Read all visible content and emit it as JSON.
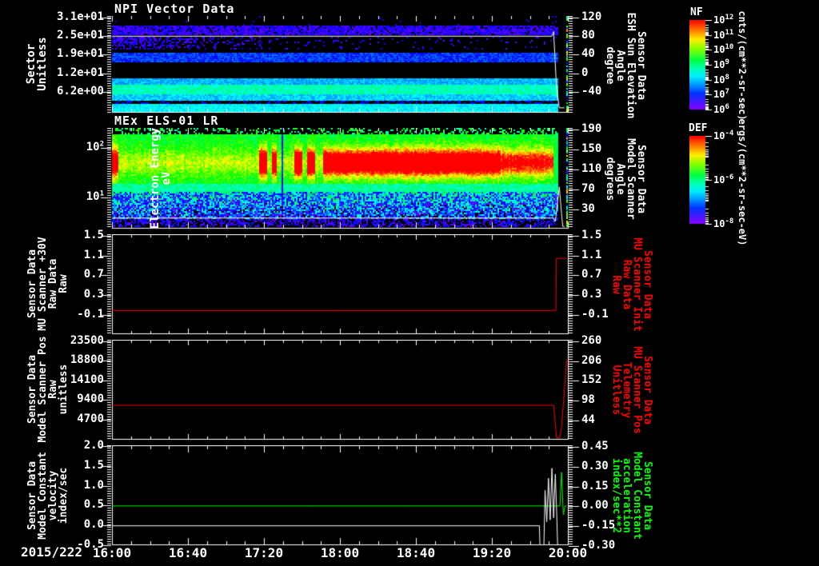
{
  "date_label": "2015/222",
  "x_axis": {
    "tick_labels": [
      "16:00",
      "16:40",
      "17:20",
      "18:00",
      "18:40",
      "19:20",
      "20:00"
    ],
    "start_hour": 16,
    "end_hour": 20
  },
  "colors": {
    "background": "#000000",
    "axis": "#ffffff",
    "trace_red": "#ff0000",
    "trace_green": "#00ff00"
  },
  "colorbars": [
    {
      "id": "nf",
      "title": "NF",
      "tick_labels": [
        "10^12",
        "10^11",
        "10^10",
        "10^9",
        "10^8",
        "10^7",
        "10^6"
      ],
      "units": "cnts/(cm**2-sr-sec)"
    },
    {
      "id": "def",
      "title": "DEF",
      "tick_labels": [
        "10^-4",
        "10^-6",
        "10^-8"
      ],
      "units": "ergs/(cm**2-sr-sec-eV)"
    }
  ],
  "panels": [
    {
      "id": "npi",
      "title": "NPI Vector Data",
      "left_label_lines": [
        "Sector",
        "Unitless"
      ],
      "left_tick_labels": [
        "3.1e+01",
        "2.5e+01",
        "1.9e+01",
        "1.2e+01",
        "6.2e+00"
      ],
      "right_tick_labels": [
        "120",
        "80",
        "40",
        "0",
        "-40"
      ],
      "right_label_lines": [
        "Sensor Data",
        "ESH Sun Elevation",
        "Angle",
        "degree"
      ],
      "right_label_color": "#ffffff"
    },
    {
      "id": "els",
      "title": "MEx ELS-01 LR",
      "left_label_lines": [
        "Electron Energy",
        "eV"
      ],
      "left_tick_labels": [
        "10^2",
        "10^1"
      ],
      "right_tick_labels": [
        "190",
        "150",
        "110",
        "70",
        "30"
      ],
      "right_label_lines": [
        "Sensor Data",
        "Model Scanner",
        "Angle",
        "degrees"
      ],
      "right_label_color": "#ffffff"
    },
    {
      "id": "p3",
      "title": "",
      "left_label_lines": [
        "Sensor Data",
        "MU Scanner +30V",
        "Raw Data",
        "Raw"
      ],
      "left_tick_labels": [
        "1.5",
        "1.1",
        "0.7",
        "0.3",
        "-0.1"
      ],
      "right_tick_labels": [
        "1.5",
        "1.1",
        "0.7",
        "0.3",
        "-0.1"
      ],
      "right_label_lines": [
        "Sensor Data",
        "MU Scanner Init",
        "Raw Data",
        "Raw"
      ],
      "right_label_color": "#ff0000"
    },
    {
      "id": "p4",
      "title": "",
      "left_label_lines": [
        "Sensor Data",
        "Model Scanner Pos",
        "Raw",
        "unitless"
      ],
      "left_tick_labels": [
        "23500",
        "18800",
        "14100",
        "9400",
        "4700"
      ],
      "right_tick_labels": [
        "260",
        "206",
        "152",
        "98",
        "44"
      ],
      "right_label_lines": [
        "Sensor Data",
        "MU Scanner Pos",
        "Telemetry",
        "Unitless"
      ],
      "right_label_color": "#ff0000"
    },
    {
      "id": "p5",
      "title": "",
      "left_label_lines": [
        "Sensor Data",
        "Model Constant",
        "velocity",
        "index/sec"
      ],
      "left_tick_labels": [
        "2.0",
        "1.5",
        "1.0",
        "0.5",
        "0.0",
        "-0.5"
      ],
      "right_tick_labels": [
        "0.45",
        "0.30",
        "0.15",
        "0.00",
        "-0.15",
        "-0.30"
      ],
      "right_label_lines": [
        "Sensor Data",
        "Model Constant",
        "acceleration",
        "index/sec**2"
      ],
      "right_label_color": "#00ff00"
    }
  ],
  "chart_data": [
    {
      "type": "heatmap",
      "id": "npi",
      "title": "NPI Vector Data",
      "ylabel": "Sector Unitless",
      "y_ticks": [
        31,
        25,
        19,
        12,
        6.2
      ],
      "y2label": "Sensor Data ESH Sun Elevation Angle degree",
      "y2_ticks": [
        120,
        80,
        40,
        0,
        -40
      ],
      "y2_range": [
        123,
        -83
      ],
      "x_range_hours": [
        16,
        20
      ],
      "colorbar": "NF",
      "colorbar_units": "cnts/(cm**2-sr-sec)",
      "colorbar_range": [
        "1e6",
        "1e12"
      ],
      "bands": [
        {
          "y0": 0.0,
          "y1": 0.09,
          "v": 0.1,
          "density": 0.015
        },
        {
          "y0": 0.09,
          "y1": 0.19,
          "v": 0.07,
          "noise": 0.05,
          "density": 0.88
        },
        {
          "y0": 0.21,
          "y1": 0.35,
          "v": 0.07,
          "noise": 0.05,
          "density": 0.85,
          "fade": 0.62
        },
        {
          "y0": 0.37,
          "y1": 0.47,
          "v": 0.16,
          "noise": 0.06
        },
        {
          "y0": 0.64,
          "y1": 0.71,
          "v": 0.27,
          "noise": 0.05
        },
        {
          "y0": 0.71,
          "y1": 0.81,
          "v": 0.4,
          "noise": 0.06
        },
        {
          "y0": 0.81,
          "y1": 0.875,
          "v": 0.29,
          "noise": 0.05
        },
        {
          "y0": 0.875,
          "y1": 0.905,
          "v": 0.12,
          "density": 0.3
        },
        {
          "y0": 0.905,
          "y1": 0.985,
          "v": 0.33,
          "noise": 0.05
        }
      ],
      "overlay_line": {
        "color": "#ffffff",
        "points": [
          [
            16,
            80
          ],
          [
            19.86,
            80
          ],
          [
            19.875,
            90
          ],
          [
            19.9,
            -30
          ],
          [
            19.925,
            -75
          ],
          [
            19.97,
            -75
          ]
        ]
      },
      "data_gap_hours": [
        19.915,
        19.972
      ]
    },
    {
      "type": "heatmap",
      "id": "els",
      "title": "MEx ELS-01 LR",
      "ylabel": "Electron Energy eV",
      "y_ticks": [
        100,
        10
      ],
      "y_scale": "log",
      "y2label": "Sensor Data Model Scanner Angle degrees",
      "y2_ticks": [
        190,
        150,
        110,
        70,
        30
      ],
      "y2_range": [
        193,
        -7
      ],
      "x_range_hours": [
        16,
        20
      ],
      "colorbar": "DEF",
      "colorbar_units": "ergs/(cm**2-sr-sec-eV)",
      "colorbar_range": [
        "1e-8",
        "1e-4"
      ],
      "bands": [
        {
          "y0": 0.0,
          "y1": 0.05,
          "v": 0.5,
          "noise": 0.15,
          "density": 0.3
        },
        {
          "y0": 0.05,
          "y1": 0.55,
          "v": 0.53,
          "noise": 0.08,
          "hot": true
        },
        {
          "y0": 0.55,
          "y1": 0.64,
          "v": 0.42,
          "noise": 0.07
        },
        {
          "y0": 0.64,
          "y1": 0.9,
          "v": 0.32,
          "noise": 0.24,
          "slope": -0.73,
          "dropout": 0.12
        },
        {
          "y0": 0.9,
          "y1": 1.0,
          "v": 0.08,
          "noise": 0.08,
          "density": 0.55
        }
      ],
      "hot_segments": [
        [
          16.0,
          16.05,
          0.25
        ],
        [
          16.0,
          17.84,
          0.1
        ],
        [
          17.28,
          17.36,
          0.38
        ],
        [
          17.4,
          17.44,
          0.36
        ],
        [
          17.6,
          17.67,
          0.38
        ],
        [
          17.71,
          17.77,
          0.36
        ],
        [
          17.85,
          19.4,
          0.42
        ],
        [
          19.4,
          19.86,
          0.28
        ]
      ],
      "hot_center": 0.34,
      "hot_width": 0.13,
      "dark_seam_hour": 17.49,
      "overlay_line": {
        "color": "#ffffff",
        "points": [
          [
            16,
            12
          ],
          [
            19.87,
            12
          ],
          [
            19.89,
            5
          ],
          [
            19.925,
            75
          ],
          [
            19.945,
            20
          ],
          [
            19.955,
            -5
          ],
          [
            19.97,
            -5
          ]
        ]
      },
      "data_gap_hours": [
        19.915,
        19.972
      ]
    },
    {
      "type": "line",
      "id": "p3",
      "ylabel": "Sensor Data MU Scanner +30V Raw Data Raw",
      "y_ticks": [
        1.5,
        1.1,
        0.7,
        0.3,
        -0.1
      ],
      "y_range": [
        1.53,
        -0.47
      ],
      "y2label": "Sensor Data MU Scanner Init Raw Data Raw",
      "y2_ticks": [
        1.5,
        1.1,
        0.7,
        0.3,
        -0.1
      ],
      "y2_range": [
        1.53,
        -0.47
      ],
      "series": [
        {
          "name": "MU Scanner Init Raw Data",
          "color": "#ff0000",
          "points": [
            [
              16,
              0.0
            ],
            [
              19.895,
              0.0
            ],
            [
              19.9,
              1.05
            ],
            [
              19.99,
              1.05
            ]
          ]
        }
      ]
    },
    {
      "type": "line",
      "id": "p4",
      "ylabel": "Sensor Data Model Scanner Pos Raw unitless",
      "y_ticks": [
        23500,
        18800,
        14100,
        9400,
        4700
      ],
      "y_range": [
        23900,
        0
      ],
      "y2label": "Sensor Data MU Scanner Pos Telemetry Unitless",
      "y2_ticks": [
        260,
        206,
        152,
        98,
        44
      ],
      "y2_range": [
        264,
        -6
      ],
      "series": [
        {
          "name": "Model Scanner Pos Raw",
          "color": "#ff0000",
          "points": [
            [
              16,
              8200
            ],
            [
              19.875,
              8200
            ],
            [
              19.9,
              400
            ],
            [
              19.93,
              400
            ],
            [
              19.945,
              3000
            ],
            [
              19.99,
              19200
            ]
          ]
        }
      ]
    },
    {
      "type": "line",
      "id": "p5",
      "ylabel": "Sensor Data Model Constant velocity index/sec",
      "y_ticks": [
        2.0,
        1.5,
        1.0,
        0.5,
        0.0,
        -0.5
      ],
      "y_range": [
        2.02,
        -0.48
      ],
      "y2label": "Sensor Data Model Constant acceleration index/sec**2",
      "y2_ticks": [
        0.45,
        0.3,
        0.15,
        0.0,
        -0.15,
        -0.3
      ],
      "y2_range": [
        0.462,
        -0.288
      ],
      "series": [
        {
          "name": "Model Constant velocity",
          "color": "#00ff00",
          "points": [
            [
              16,
              0.5
            ],
            [
              19.93,
              0.5
            ],
            [
              19.945,
              1.35
            ],
            [
              19.96,
              0.28
            ],
            [
              19.975,
              0.5
            ],
            [
              19.99,
              0.5
            ]
          ]
        },
        {
          "name": "baseline",
          "color": "#ffffff",
          "points": [
            [
              16,
              0.0
            ],
            [
              19.75,
              0.0
            ],
            [
              19.755,
              -0.48
            ],
            [
              19.79,
              -0.48
            ],
            [
              19.8,
              0.9
            ],
            [
              19.815,
              0.1
            ],
            [
              19.83,
              1.2
            ],
            [
              19.845,
              0.15
            ],
            [
              19.86,
              1.45
            ],
            [
              19.875,
              0.2
            ],
            [
              19.89,
              1.3
            ],
            [
              19.9,
              0.5
            ],
            [
              19.91,
              -0.48
            ],
            [
              19.99,
              -0.48
            ]
          ]
        }
      ]
    }
  ]
}
